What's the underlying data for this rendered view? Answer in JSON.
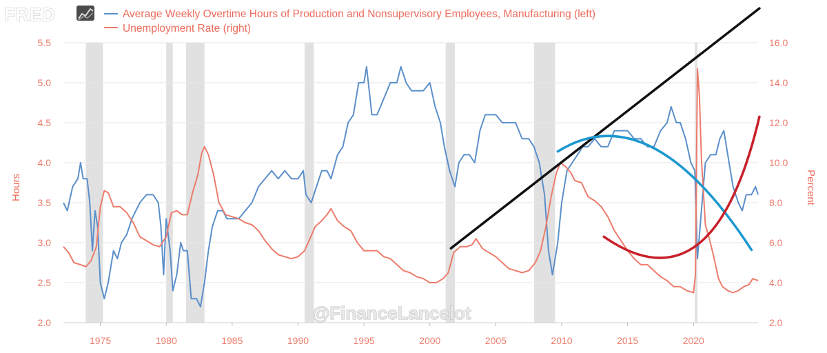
{
  "logo": {
    "text": "FRED"
  },
  "watermark": "@FinanceLancelot",
  "colors": {
    "overtime": "#5b8fca",
    "unemployment": "#ec7c6c",
    "recession": "#e1e1e1",
    "grid": "#e6e6e6"
  },
  "chart_data": {
    "type": "line",
    "legend": {
      "placement": "top-left",
      "entries": [
        "Average Weekly Overtime Hours of Production and Nonsupervisory Employees, Manufacturing (left)",
        "Unemployment Rate (right)"
      ]
    },
    "y_left": {
      "label": "Hours",
      "range": [
        2.0,
        5.5
      ],
      "ticks": [
        "2.0",
        "2.5",
        "3.0",
        "3.5",
        "4.0",
        "4.5",
        "5.0",
        "5.5"
      ]
    },
    "y_right": {
      "label": "Percent",
      "range": [
        2.0,
        16.0
      ],
      "ticks": [
        "2.0",
        "4.0",
        "6.0",
        "8.0",
        "10.0",
        "12.0",
        "14.0",
        "16.0"
      ]
    },
    "x_range": [
      1972.2,
      2024.9
    ],
    "x_ticks": [
      "1975",
      "1980",
      "1985",
      "1990",
      "1995",
      "2000",
      "2005",
      "2010",
      "2015",
      "2020"
    ],
    "grid": true,
    "recessions": [
      [
        1973.9,
        1975.2
      ],
      [
        1980.0,
        1980.5
      ],
      [
        1981.5,
        1982.9
      ],
      [
        1990.5,
        1991.2
      ],
      [
        2001.2,
        2001.9
      ],
      [
        2007.9,
        2009.5
      ],
      [
        2020.1,
        2020.3
      ]
    ],
    "series": [
      {
        "name": "Average Weekly Overtime Hours of Production and Nonsupervisory Employees, Manufacturing (left)",
        "axis": "left",
        "points": [
          [
            1972.2,
            3.5
          ],
          [
            1972.5,
            3.4
          ],
          [
            1972.9,
            3.7
          ],
          [
            1973.3,
            3.8
          ],
          [
            1973.5,
            4.0
          ],
          [
            1973.7,
            3.8
          ],
          [
            1974.0,
            3.8
          ],
          [
            1974.2,
            3.5
          ],
          [
            1974.4,
            2.9
          ],
          [
            1974.6,
            3.4
          ],
          [
            1974.8,
            3.2
          ],
          [
            1975.0,
            2.5
          ],
          [
            1975.3,
            2.3
          ],
          [
            1975.6,
            2.5
          ],
          [
            1976.0,
            2.9
          ],
          [
            1976.3,
            2.8
          ],
          [
            1976.6,
            3.0
          ],
          [
            1977.0,
            3.1
          ],
          [
            1977.4,
            3.3
          ],
          [
            1978.0,
            3.5
          ],
          [
            1978.5,
            3.6
          ],
          [
            1979.0,
            3.6
          ],
          [
            1979.4,
            3.5
          ],
          [
            1979.6,
            3.2
          ],
          [
            1979.8,
            2.6
          ],
          [
            1980.0,
            3.3
          ],
          [
            1980.3,
            2.9
          ],
          [
            1980.5,
            2.4
          ],
          [
            1980.8,
            2.6
          ],
          [
            1981.1,
            3.0
          ],
          [
            1981.3,
            2.9
          ],
          [
            1981.6,
            2.9
          ],
          [
            1981.9,
            2.3
          ],
          [
            1982.3,
            2.3
          ],
          [
            1982.6,
            2.2
          ],
          [
            1982.9,
            2.5
          ],
          [
            1983.2,
            2.9
          ],
          [
            1983.5,
            3.2
          ],
          [
            1983.9,
            3.4
          ],
          [
            1984.3,
            3.4
          ],
          [
            1984.6,
            3.3
          ],
          [
            1985.0,
            3.3
          ],
          [
            1985.5,
            3.3
          ],
          [
            1986.0,
            3.4
          ],
          [
            1986.5,
            3.5
          ],
          [
            1987.0,
            3.7
          ],
          [
            1987.5,
            3.8
          ],
          [
            1988.0,
            3.9
          ],
          [
            1988.5,
            3.8
          ],
          [
            1989.0,
            3.9
          ],
          [
            1989.5,
            3.8
          ],
          [
            1990.0,
            3.8
          ],
          [
            1990.4,
            3.9
          ],
          [
            1990.6,
            3.6
          ],
          [
            1991.0,
            3.5
          ],
          [
            1991.4,
            3.7
          ],
          [
            1991.8,
            3.9
          ],
          [
            1992.2,
            3.9
          ],
          [
            1992.5,
            3.8
          ],
          [
            1993.0,
            4.1
          ],
          [
            1993.4,
            4.2
          ],
          [
            1993.8,
            4.5
          ],
          [
            1994.2,
            4.6
          ],
          [
            1994.6,
            5.0
          ],
          [
            1995.0,
            5.0
          ],
          [
            1995.2,
            5.2
          ],
          [
            1995.6,
            4.6
          ],
          [
            1996.0,
            4.6
          ],
          [
            1996.5,
            4.8
          ],
          [
            1997.0,
            5.0
          ],
          [
            1997.5,
            5.0
          ],
          [
            1997.8,
            5.2
          ],
          [
            1998.2,
            5.0
          ],
          [
            1998.6,
            4.9
          ],
          [
            1999.0,
            4.9
          ],
          [
            1999.5,
            4.9
          ],
          [
            2000.0,
            5.0
          ],
          [
            2000.4,
            4.7
          ],
          [
            2000.8,
            4.5
          ],
          [
            2001.1,
            4.2
          ],
          [
            2001.5,
            3.9
          ],
          [
            2001.9,
            3.7
          ],
          [
            2002.2,
            4.0
          ],
          [
            2002.6,
            4.1
          ],
          [
            2003.0,
            4.1
          ],
          [
            2003.4,
            4.0
          ],
          [
            2003.8,
            4.4
          ],
          [
            2004.2,
            4.6
          ],
          [
            2004.6,
            4.6
          ],
          [
            2005.0,
            4.6
          ],
          [
            2005.5,
            4.5
          ],
          [
            2006.0,
            4.5
          ],
          [
            2006.5,
            4.5
          ],
          [
            2007.0,
            4.3
          ],
          [
            2007.5,
            4.3
          ],
          [
            2007.9,
            4.2
          ],
          [
            2008.3,
            4.0
          ],
          [
            2008.7,
            3.6
          ],
          [
            2009.0,
            2.9
          ],
          [
            2009.3,
            2.6
          ],
          [
            2009.7,
            3.0
          ],
          [
            2010.0,
            3.5
          ],
          [
            2010.4,
            3.9
          ],
          [
            2010.8,
            4.0
          ],
          [
            2011.2,
            4.1
          ],
          [
            2011.6,
            4.2
          ],
          [
            2012.0,
            4.2
          ],
          [
            2012.5,
            4.3
          ],
          [
            2013.0,
            4.2
          ],
          [
            2013.5,
            4.2
          ],
          [
            2014.0,
            4.4
          ],
          [
            2014.5,
            4.4
          ],
          [
            2015.0,
            4.4
          ],
          [
            2015.5,
            4.3
          ],
          [
            2016.0,
            4.3
          ],
          [
            2016.5,
            4.2
          ],
          [
            2017.0,
            4.2
          ],
          [
            2017.5,
            4.4
          ],
          [
            2018.0,
            4.5
          ],
          [
            2018.3,
            4.7
          ],
          [
            2018.7,
            4.5
          ],
          [
            2019.0,
            4.5
          ],
          [
            2019.4,
            4.3
          ],
          [
            2019.8,
            4.0
          ],
          [
            2020.1,
            3.9
          ],
          [
            2020.3,
            2.8
          ],
          [
            2020.6,
            3.4
          ],
          [
            2020.9,
            4.0
          ],
          [
            2021.3,
            4.1
          ],
          [
            2021.7,
            4.1
          ],
          [
            2022.0,
            4.3
          ],
          [
            2022.3,
            4.4
          ],
          [
            2022.7,
            4.0
          ],
          [
            2023.0,
            3.7
          ],
          [
            2023.4,
            3.5
          ],
          [
            2023.7,
            3.4
          ],
          [
            2024.0,
            3.6
          ],
          [
            2024.4,
            3.6
          ],
          [
            2024.7,
            3.7
          ],
          [
            2024.9,
            3.6
          ]
        ]
      },
      {
        "name": "Unemployment Rate (right)",
        "axis": "right",
        "points": [
          [
            1972.2,
            5.8
          ],
          [
            1972.6,
            5.5
          ],
          [
            1973.0,
            5.0
          ],
          [
            1973.5,
            4.9
          ],
          [
            1973.9,
            4.8
          ],
          [
            1974.3,
            5.1
          ],
          [
            1974.7,
            5.8
          ],
          [
            1975.0,
            7.8
          ],
          [
            1975.3,
            8.6
          ],
          [
            1975.6,
            8.5
          ],
          [
            1976.0,
            7.8
          ],
          [
            1976.5,
            7.8
          ],
          [
            1977.0,
            7.5
          ],
          [
            1977.5,
            7.0
          ],
          [
            1978.0,
            6.3
          ],
          [
            1978.5,
            6.1
          ],
          [
            1979.0,
            5.9
          ],
          [
            1979.5,
            5.8
          ],
          [
            1980.0,
            6.3
          ],
          [
            1980.4,
            7.5
          ],
          [
            1980.8,
            7.6
          ],
          [
            1981.2,
            7.4
          ],
          [
            1981.6,
            7.4
          ],
          [
            1982.0,
            8.5
          ],
          [
            1982.4,
            9.4
          ],
          [
            1982.7,
            10.5
          ],
          [
            1982.9,
            10.8
          ],
          [
            1983.2,
            10.4
          ],
          [
            1983.6,
            9.4
          ],
          [
            1984.0,
            8.0
          ],
          [
            1984.5,
            7.4
          ],
          [
            1985.0,
            7.3
          ],
          [
            1985.5,
            7.2
          ],
          [
            1986.0,
            7.0
          ],
          [
            1986.5,
            6.9
          ],
          [
            1987.0,
            6.6
          ],
          [
            1987.5,
            6.1
          ],
          [
            1988.0,
            5.7
          ],
          [
            1988.5,
            5.4
          ],
          [
            1989.0,
            5.3
          ],
          [
            1989.5,
            5.2
          ],
          [
            1990.0,
            5.3
          ],
          [
            1990.5,
            5.6
          ],
          [
            1990.9,
            6.2
          ],
          [
            1991.3,
            6.8
          ],
          [
            1991.8,
            7.1
          ],
          [
            1992.2,
            7.4
          ],
          [
            1992.5,
            7.7
          ],
          [
            1993.0,
            7.1
          ],
          [
            1993.5,
            6.8
          ],
          [
            1994.0,
            6.6
          ],
          [
            1994.5,
            6.0
          ],
          [
            1995.0,
            5.6
          ],
          [
            1995.5,
            5.6
          ],
          [
            1996.0,
            5.6
          ],
          [
            1996.5,
            5.3
          ],
          [
            1997.0,
            5.2
          ],
          [
            1997.5,
            4.9
          ],
          [
            1998.0,
            4.6
          ],
          [
            1998.5,
            4.5
          ],
          [
            1999.0,
            4.3
          ],
          [
            1999.5,
            4.2
          ],
          [
            2000.0,
            4.0
          ],
          [
            2000.5,
            4.0
          ],
          [
            2001.0,
            4.2
          ],
          [
            2001.4,
            4.5
          ],
          [
            2001.8,
            5.5
          ],
          [
            2002.3,
            5.8
          ],
          [
            2002.8,
            5.8
          ],
          [
            2003.2,
            5.9
          ],
          [
            2003.5,
            6.2
          ],
          [
            2004.0,
            5.7
          ],
          [
            2004.5,
            5.5
          ],
          [
            2005.0,
            5.3
          ],
          [
            2005.5,
            5.0
          ],
          [
            2006.0,
            4.7
          ],
          [
            2006.5,
            4.6
          ],
          [
            2007.0,
            4.5
          ],
          [
            2007.5,
            4.6
          ],
          [
            2008.0,
            5.0
          ],
          [
            2008.4,
            5.6
          ],
          [
            2008.8,
            6.8
          ],
          [
            2009.2,
            8.3
          ],
          [
            2009.6,
            9.5
          ],
          [
            2009.9,
            10.0
          ],
          [
            2010.3,
            9.8
          ],
          [
            2010.7,
            9.5
          ],
          [
            2011.0,
            9.1
          ],
          [
            2011.5,
            9.0
          ],
          [
            2012.0,
            8.3
          ],
          [
            2012.5,
            8.1
          ],
          [
            2013.0,
            7.8
          ],
          [
            2013.5,
            7.3
          ],
          [
            2014.0,
            6.6
          ],
          [
            2014.5,
            6.1
          ],
          [
            2015.0,
            5.6
          ],
          [
            2015.5,
            5.2
          ],
          [
            2016.0,
            4.9
          ],
          [
            2016.5,
            4.9
          ],
          [
            2017.0,
            4.6
          ],
          [
            2017.5,
            4.3
          ],
          [
            2018.0,
            4.1
          ],
          [
            2018.5,
            3.8
          ],
          [
            2019.0,
            3.8
          ],
          [
            2019.5,
            3.6
          ],
          [
            2020.0,
            3.5
          ],
          [
            2020.15,
            4.4
          ],
          [
            2020.3,
            14.7
          ],
          [
            2020.45,
            13.3
          ],
          [
            2020.6,
            10.2
          ],
          [
            2020.9,
            6.9
          ],
          [
            2021.2,
            6.2
          ],
          [
            2021.5,
            5.4
          ],
          [
            2021.9,
            4.2
          ],
          [
            2022.2,
            3.8
          ],
          [
            2022.6,
            3.6
          ],
          [
            2023.0,
            3.5
          ],
          [
            2023.4,
            3.6
          ],
          [
            2023.8,
            3.8
          ],
          [
            2024.2,
            3.9
          ],
          [
            2024.5,
            4.2
          ],
          [
            2024.9,
            4.1
          ]
        ]
      }
    ],
    "annotations": [
      {
        "type": "line",
        "color": "#111111",
        "width": 3.5,
        "from": [
          2001.6,
          2.93
        ],
        "to": [
          2025.0,
          5.93
        ]
      },
      {
        "type": "curve",
        "color": "#1c98cf",
        "width": 3.5,
        "axis": "left",
        "points": [
          [
            2009.7,
            4.14
          ],
          [
            2016.7,
            4.86
          ],
          [
            2024.4,
            2.91
          ]
        ]
      },
      {
        "type": "curve",
        "color": "#c8202a",
        "width": 3.5,
        "axis": "right",
        "points": [
          [
            2013.2,
            6.3
          ],
          [
            2021.5,
            2.5
          ],
          [
            2025.0,
            12.3
          ]
        ]
      }
    ]
  }
}
